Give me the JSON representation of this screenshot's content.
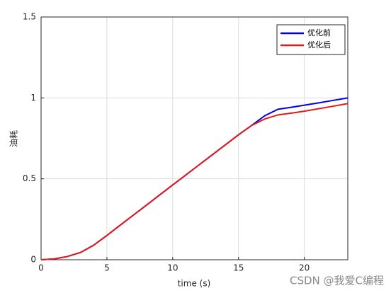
{
  "chart_data": {
    "type": "line",
    "xlabel": "time (s)",
    "ylabel": "油耗",
    "x": [
      0,
      1,
      2,
      3,
      4,
      5,
      6,
      7,
      8,
      9,
      10,
      11,
      12,
      13,
      14,
      15,
      16,
      17,
      18,
      19,
      20,
      21,
      22,
      23.3
    ],
    "series": [
      {
        "name": "优化前",
        "color": "#0000e6",
        "values": [
          0,
          0.005,
          0.02,
          0.045,
          0.09,
          0.15,
          0.213,
          0.275,
          0.337,
          0.4,
          0.462,
          0.524,
          0.586,
          0.648,
          0.71,
          0.772,
          0.83,
          0.89,
          0.93,
          0.942,
          0.955,
          0.968,
          0.982,
          1.0
        ]
      },
      {
        "name": "优化后",
        "color": "#e61919",
        "values": [
          0,
          0.005,
          0.02,
          0.045,
          0.09,
          0.15,
          0.213,
          0.275,
          0.337,
          0.4,
          0.462,
          0.524,
          0.586,
          0.648,
          0.71,
          0.772,
          0.83,
          0.87,
          0.895,
          0.906,
          0.918,
          0.932,
          0.946,
          0.965
        ]
      }
    ],
    "xlim": [
      0,
      23.3
    ],
    "ylim": [
      0,
      1.5
    ],
    "xticks": [
      0,
      5,
      10,
      15,
      20
    ],
    "yticks": [
      0,
      0.5,
      1,
      1.5
    ],
    "grid": true,
    "legend": "top-right",
    "watermark": "CSDN @我爱C编程"
  }
}
